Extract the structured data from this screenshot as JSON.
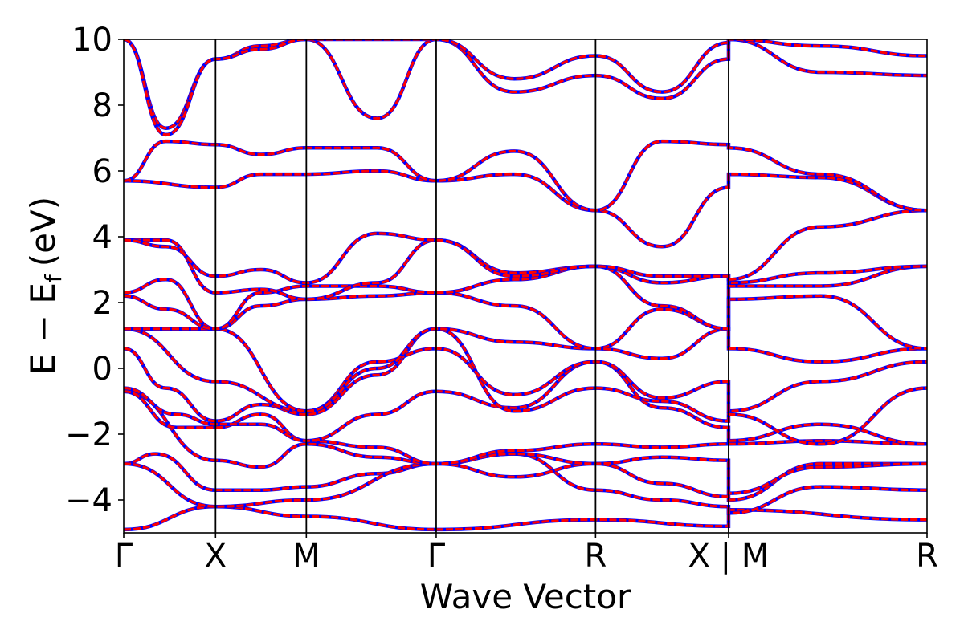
{
  "chart_data": {
    "type": "line",
    "xlabel": "Wave Vector",
    "ylabel": "E − E",
    "ylabel_subscript": "f",
    "ylabel_unit": "(eV)",
    "ylim": [
      -5,
      10
    ],
    "yticks": [
      -4,
      -2,
      0,
      2,
      4,
      6,
      8,
      10
    ],
    "ytick_labels": [
      "−4",
      "−2",
      "0",
      "2",
      "4",
      "6",
      "8",
      "10"
    ],
    "xlim": [
      0,
      7.61
    ],
    "kpoints": [
      {
        "label": "Γ",
        "x": 0.0
      },
      {
        "label": "X",
        "x": 0.87
      },
      {
        "label": "M",
        "x": 1.73
      },
      {
        "label": "Γ",
        "x": 2.96
      },
      {
        "label": "R",
        "x": 4.47
      },
      {
        "label": "X | M",
        "x": 5.73
      },
      {
        "label": "R",
        "x": 7.61
      }
    ],
    "series_styles": [
      {
        "color": "#0000ff",
        "dash": "solid"
      },
      {
        "color": "#ff0000",
        "dash": "dashed"
      }
    ],
    "grid": false,
    "bands": [
      {
        "x": [
          0.0,
          0.87,
          1.73,
          2.96,
          4.47,
          5.73,
          5.73,
          7.61
        ],
        "y": [
          -4.9,
          -4.2,
          -4.5,
          -4.9,
          -4.6,
          -4.8,
          -4.3,
          -4.6
        ]
      },
      {
        "x": [
          0.0,
          0.3,
          0.87,
          1.3,
          1.73,
          2.4,
          2.96,
          3.7,
          4.47,
          5.1,
          5.73,
          5.73,
          6.6,
          7.61
        ],
        "y": [
          -2.9,
          -2.6,
          -3.7,
          -3.7,
          -3.6,
          -3.2,
          -2.9,
          -2.6,
          -3.7,
          -4.0,
          -4.2,
          -4.4,
          -3.6,
          -3.7
        ]
      },
      {
        "x": [
          0.0,
          0.87,
          1.73,
          2.96,
          3.7,
          4.47,
          5.1,
          5.73,
          5.73,
          6.6,
          7.61
        ],
        "y": [
          -2.9,
          -4.2,
          -4.0,
          -2.9,
          -3.3,
          -2.9,
          -3.5,
          -3.9,
          -4.0,
          -2.9,
          -2.9
        ]
      },
      {
        "x": [
          0.0,
          0.87,
          1.3,
          1.73,
          2.4,
          2.96,
          3.7,
          4.47,
          5.1,
          5.73,
          5.73,
          6.6,
          7.61
        ],
        "y": [
          -0.7,
          -2.8,
          -3.0,
          -2.3,
          -2.7,
          -2.9,
          -2.6,
          -2.9,
          -2.7,
          -2.8,
          -3.8,
          -3.0,
          -2.9
        ]
      },
      {
        "x": [
          0.0,
          0.5,
          0.87,
          1.3,
          1.73,
          2.4,
          2.96,
          3.7,
          4.47,
          5.1,
          5.73,
          5.73,
          6.6,
          7.61
        ],
        "y": [
          -0.7,
          -1.8,
          -1.8,
          -1.4,
          -2.2,
          -2.4,
          -2.9,
          -2.5,
          -2.3,
          -2.4,
          -2.3,
          -2.3,
          -2.2,
          -2.3
        ]
      },
      {
        "x": [
          0.0,
          0.5,
          0.87,
          1.3,
          1.73,
          2.4,
          2.96,
          3.7,
          4.47,
          5.1,
          5.73,
          5.73,
          6.6,
          7.61
        ],
        "y": [
          -0.6,
          -1.4,
          -1.7,
          -1.7,
          -2.2,
          -1.4,
          -0.7,
          -1.2,
          0.2,
          -1.2,
          -1.8,
          -2.2,
          -1.7,
          -2.3
        ]
      },
      {
        "x": [
          0.0,
          0.4,
          0.87,
          1.3,
          1.73,
          2.4,
          2.96,
          3.7,
          4.47,
          5.1,
          5.73,
          5.73,
          6.6,
          7.61
        ],
        "y": [
          0.6,
          -0.6,
          -1.6,
          -1.1,
          -1.4,
          -0.2,
          1.2,
          -1.3,
          -0.6,
          -1.0,
          -1.6,
          -1.4,
          -2.3,
          -0.6
        ]
      },
      {
        "x": [
          0.0,
          0.87,
          1.73,
          2.4,
          2.96,
          3.7,
          4.47,
          5.1,
          5.73,
          5.73,
          6.6,
          7.61
        ],
        "y": [
          1.2,
          -0.4,
          -1.3,
          0.2,
          0.6,
          -0.8,
          0.2,
          -0.9,
          -0.4,
          -1.3,
          -0.4,
          0.2
        ]
      },
      {
        "x": [
          0.0,
          0.87,
          1.73,
          2.4,
          2.96,
          3.7,
          4.47,
          5.1,
          5.73,
          5.73,
          6.6,
          7.61
        ],
        "y": [
          1.2,
          1.2,
          -1.3,
          0.0,
          1.2,
          0.8,
          0.6,
          1.8,
          1.2,
          0.6,
          0.2,
          0.6
        ]
      },
      {
        "x": [
          0.0,
          0.4,
          0.87,
          1.3,
          1.73,
          2.4,
          2.96,
          3.7,
          4.47,
          5.1,
          5.73,
          5.73,
          6.6,
          7.61
        ],
        "y": [
          2.3,
          2.7,
          1.2,
          1.9,
          2.1,
          2.2,
          2.3,
          1.9,
          0.6,
          0.3,
          1.2,
          2.1,
          2.2,
          0.6
        ]
      },
      {
        "x": [
          0.0,
          0.4,
          0.87,
          1.3,
          1.73,
          2.4,
          2.96,
          3.7,
          4.47,
          5.1,
          5.73,
          5.73,
          6.6,
          7.61
        ],
        "y": [
          2.2,
          1.8,
          1.2,
          2.3,
          2.5,
          2.5,
          2.3,
          2.7,
          3.1,
          1.9,
          1.2,
          2.5,
          2.5,
          3.1
        ]
      },
      {
        "x": [
          0.0,
          0.4,
          0.87,
          1.3,
          1.73,
          2.4,
          2.96,
          3.7,
          4.47,
          5.1,
          5.73,
          5.73,
          6.6,
          7.61
        ],
        "y": [
          3.9,
          3.9,
          2.3,
          2.4,
          2.1,
          2.6,
          3.9,
          2.9,
          3.1,
          2.6,
          2.8,
          2.6,
          2.9,
          3.1
        ]
      },
      {
        "x": [
          0.0,
          0.4,
          0.87,
          1.3,
          1.73,
          2.4,
          2.96,
          3.7,
          4.47,
          5.1,
          5.73,
          5.73,
          6.6,
          7.61
        ],
        "y": [
          3.9,
          3.7,
          2.8,
          3.0,
          2.6,
          4.1,
          3.9,
          2.8,
          3.1,
          2.8,
          2.8,
          2.7,
          4.3,
          4.8
        ]
      },
      {
        "x": [
          0.0,
          0.87,
          1.3,
          1.73,
          2.4,
          2.96,
          3.7,
          4.47,
          5.1,
          5.73,
          5.73,
          6.6,
          7.61
        ],
        "y": [
          5.7,
          5.5,
          5.9,
          5.9,
          6.0,
          5.7,
          5.9,
          4.8,
          3.7,
          5.5,
          5.9,
          5.8,
          4.8
        ]
      },
      {
        "x": [
          0.0,
          0.4,
          0.87,
          1.3,
          1.73,
          2.4,
          2.96,
          3.7,
          4.47,
          5.1,
          5.73,
          5.73,
          6.6,
          7.61
        ],
        "y": [
          5.7,
          6.9,
          6.8,
          6.5,
          6.7,
          6.7,
          5.7,
          6.6,
          4.8,
          6.9,
          6.8,
          6.7,
          5.9,
          4.8
        ]
      },
      {
        "x": [
          0.0,
          0.4,
          0.87,
          1.3,
          1.73,
          2.4,
          2.96,
          3.7,
          4.47,
          5.1,
          5.73,
          5.73,
          6.6,
          7.61
        ],
        "y": [
          10.0,
          7.3,
          9.4,
          9.8,
          10.0,
          7.6,
          10.0,
          8.4,
          8.9,
          8.2,
          9.4,
          10.0,
          9.0,
          8.9
        ]
      },
      {
        "x": [
          0.0,
          0.4,
          0.87,
          1.3,
          1.73,
          2.96,
          3.7,
          4.47,
          5.1,
          5.73,
          5.73,
          6.6,
          7.61
        ],
        "y": [
          10.0,
          7.1,
          9.4,
          9.7,
          10.0,
          10.0,
          8.8,
          9.5,
          8.4,
          9.9,
          10.0,
          9.8,
          9.5
        ]
      }
    ]
  }
}
